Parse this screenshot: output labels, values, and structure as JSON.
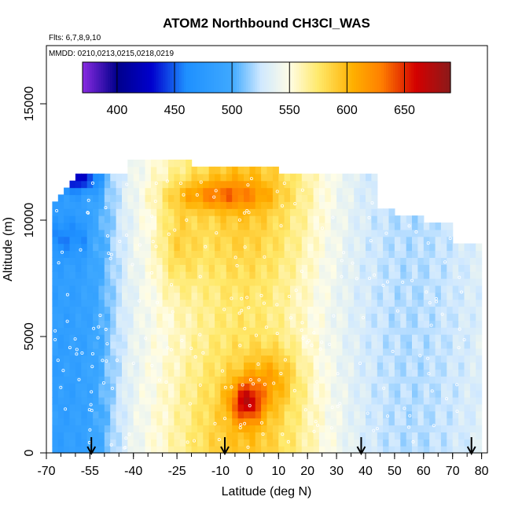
{
  "chart_data": {
    "type": "heatmap",
    "title": "ATOM2 Northbound CH3Cl_WAS",
    "flights_label": "Flts: 6,7,8,9,10",
    "dates_label": "MMDD: 0210,0213,0215,0218,0219",
    "xlabel": "Latitude (deg N)",
    "ylabel": "Altitude (m)",
    "xlim": [
      -70,
      82
    ],
    "ylim": [
      0,
      17500
    ],
    "x_ticks": [
      -70,
      -55,
      -40,
      -25,
      -10,
      0,
      10,
      20,
      30,
      40,
      50,
      60,
      70,
      80
    ],
    "x_minor_step": 5,
    "y_ticks": [
      0,
      5000,
      10000,
      15000
    ],
    "colorbar": {
      "min": 370,
      "max": 690,
      "ticks": [
        400,
        450,
        500,
        550,
        600,
        650
      ],
      "stops": [
        {
          "v": 370,
          "c": "#8a2be2"
        },
        {
          "v": 400,
          "c": "#00008b"
        },
        {
          "v": 430,
          "c": "#0000cd"
        },
        {
          "v": 460,
          "c": "#1e90ff"
        },
        {
          "v": 500,
          "c": "#3fa9ff"
        },
        {
          "v": 525,
          "c": "#cfe8ff"
        },
        {
          "v": 550,
          "c": "#fffde6"
        },
        {
          "v": 575,
          "c": "#ffe96b"
        },
        {
          "v": 605,
          "c": "#ffb000"
        },
        {
          "v": 630,
          "c": "#ff7f00"
        },
        {
          "v": 660,
          "c": "#d40000"
        },
        {
          "v": 690,
          "c": "#8b1a1a"
        }
      ]
    },
    "profile_latitudes": [
      -54.5,
      -8.5,
      38.5,
      76.5
    ],
    "field_model": {
      "description": "CH3Cl mixing ratio (pptv) on latitude-altitude curtain",
      "lat_range": [
        -68,
        80
      ],
      "alt_step": 300,
      "lat_step": 2
    }
  }
}
